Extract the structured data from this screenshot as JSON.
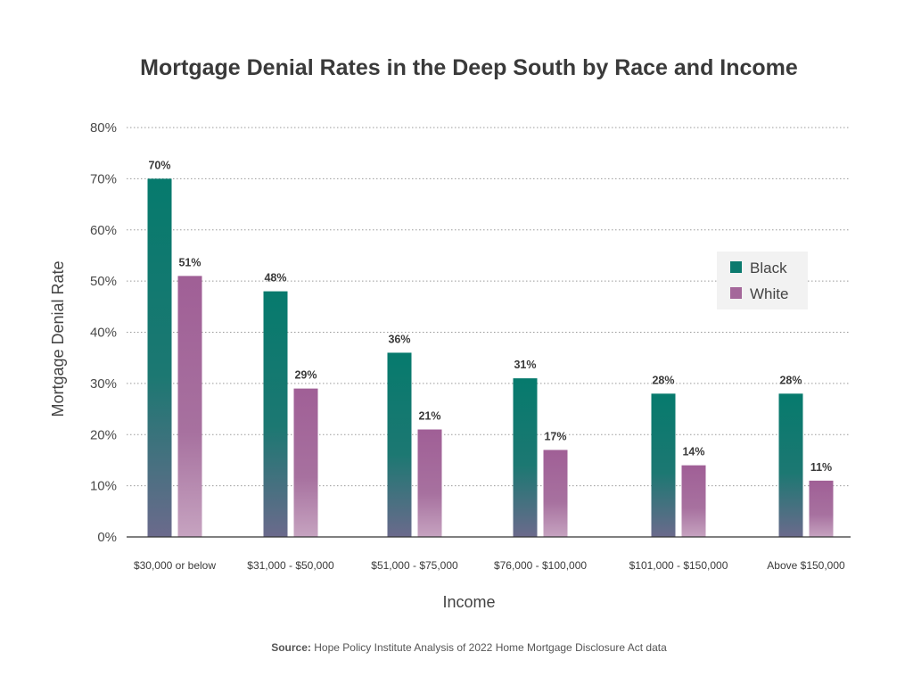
{
  "chart_data": {
    "type": "bar",
    "title": "Mortgage Denial Rates in the Deep South by Race and Income",
    "xlabel": "Income",
    "ylabel": "Mortgage Denial Rate",
    "ylim": [
      0,
      80
    ],
    "yticks": [
      "0%",
      "10%",
      "20%",
      "30%",
      "40%",
      "50%",
      "60%",
      "70%",
      "80%"
    ],
    "grid": true,
    "legend_position": "right",
    "categories": [
      "$30,000 or below",
      "$31,000 - $50,000",
      "$51,000 - $75,000",
      "$76,000 - $100,000",
      "$101,000 - $150,000",
      "Above $150,000"
    ],
    "series": [
      {
        "name": "Black",
        "color": "#0b7a6e",
        "values": [
          70,
          48,
          36,
          31,
          28,
          28
        ],
        "labels": [
          "70%",
          "48%",
          "36%",
          "31%",
          "28%",
          "28%"
        ]
      },
      {
        "name": "White",
        "color": "#a4679a",
        "values": [
          51,
          29,
          21,
          17,
          14,
          11
        ],
        "labels": [
          "51%",
          "29%",
          "21%",
          "17%",
          "14%",
          "11%"
        ]
      }
    ]
  },
  "source": {
    "label": "Source:",
    "text": " Hope Policy Institute Analysis of 2022 Home Mortgage Disclosure Act data"
  }
}
